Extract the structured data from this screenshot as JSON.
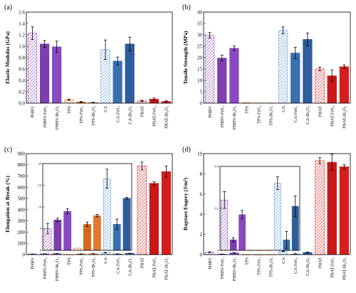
{
  "chart_data": [
    {
      "panel": "(a)",
      "type": "bar",
      "ylabel": "Elastic Modulus (GPa)",
      "ylim": [
        0.0,
        1.6
      ],
      "yticks": [
        "0.0",
        "0.2",
        "0.4",
        "0.6",
        "0.8",
        "1.0",
        "1.2",
        "1.4",
        "1.6"
      ],
      "categories": [
        "PHBV",
        "PHBV-FeS₃",
        "PHBV-Bi₂O₃",
        "TPS",
        "TPS-FeS₃",
        "TPS-Bi₂O₃",
        "CA",
        "CA-FeS₃",
        "CA-Bi₂O₃",
        "PBAT",
        "PBAT-FeS₃",
        "PBAT-Bi₂O₃"
      ],
      "values": [
        1.23,
        1.04,
        0.99,
        0.06,
        0.02,
        0.01,
        0.94,
        0.74,
        1.04,
        0.04,
        0.07,
        0.03
      ],
      "errors": [
        0.11,
        0.06,
        0.1,
        0.01,
        0.01,
        0.005,
        0.17,
        0.07,
        0.12,
        0.01,
        0.02,
        0.01
      ]
    },
    {
      "panel": "(b)",
      "type": "bar",
      "ylabel": "Tensile Strength (MPa)",
      "ylim": [
        0,
        40
      ],
      "yticks": [
        "0",
        "5",
        "10",
        "15",
        "20",
        "25",
        "30",
        "35",
        "40"
      ],
      "categories": [
        "PHBV",
        "PHBV-FeS₃",
        "PHBV-Bi₂O₃",
        "TPS",
        "TPS-FeS₃",
        "TPS-Bi₂O₃",
        "CA",
        "CA-FeS₃",
        "CA-Bi₂O₃",
        "PBAT",
        "PBAT-FeS₃",
        "PBAT-Bi₂O₃"
      ],
      "values": [
        29.8,
        19.8,
        24.1,
        0.2,
        0.1,
        0.1,
        32.0,
        22.0,
        28.0,
        15.0,
        12.0,
        16.0
      ],
      "errors": [
        1.2,
        1.3,
        1.0,
        0,
        0,
        0,
        1.5,
        2.5,
        2.8,
        0.8,
        2.5,
        0.8
      ]
    },
    {
      "panel": "(c)",
      "type": "bar",
      "ylabel": "Elongation at Break (%)",
      "ylim": [
        0,
        900
      ],
      "yticks": [
        "0",
        "100",
        "200",
        "300",
        "400",
        "500",
        "600",
        "700",
        "800",
        "900"
      ],
      "categories": [
        "PHBV",
        "PHBV-FeS₃",
        "PHBV-Bi₂O₃",
        "TPS",
        "TPS-FeS₃",
        "TPS-Bi₂O₃",
        "CA",
        "CA-FeS₃",
        "CA-Bi₂O₃",
        "PBAT",
        "PBAT-FeS₃",
        "PBAT-Bi₂O₃"
      ],
      "values": [
        5,
        7,
        9,
        0.5,
        6,
        8,
        16.5,
        6,
        12,
        790,
        635,
        740
      ],
      "errors": [
        1.2,
        0.4,
        0.6,
        0,
        0.5,
        0.3,
        2.2,
        1.2,
        0.2,
        35,
        15,
        50
      ],
      "inset": {
        "ylim": [
          0,
          20
        ],
        "yticks": [
          "0",
          "5",
          "10",
          "15",
          "20"
        ],
        "values": [
          5,
          7,
          9,
          0.5,
          6,
          8,
          16.5,
          6,
          12
        ],
        "errors": [
          1.2,
          0.4,
          0.6,
          0,
          0.5,
          0.3,
          2.2,
          1.2,
          0.2
        ]
      }
    },
    {
      "panel": "(d)",
      "type": "bar",
      "ylabel": "Rupture Engery (J/m²)",
      "ylim": [
        0,
        10
      ],
      "yticks": [
        "0",
        "2",
        "4",
        "6",
        "8",
        "10"
      ],
      "categories": [
        "PHBV",
        "PHBV-FeS₃",
        "PHBV-Bi₂O₃",
        "TPS",
        "TPS-FeS₃",
        "TPS-Bi₂O₃",
        "CA",
        "CA-FeS₃",
        "CA-Bi₂O₃",
        "PBAT",
        "PBAT-FeS₃",
        "PBAT-Bi₂O₃"
      ],
      "values": [
        0.24,
        0.05,
        0.17,
        0.0,
        0.0,
        0.0,
        0.32,
        0.05,
        0.21,
        9.3,
        9.15,
        8.7
      ],
      "errors": [
        0.04,
        0.01,
        0.02,
        0,
        0,
        0,
        0.03,
        0.04,
        0.05,
        0.3,
        0.8,
        0.2
      ],
      "inset": {
        "ylim": [
          0,
          0.4
        ],
        "yticks": [
          "0",
          "0.2",
          "0.4"
        ],
        "values": [
          0.24,
          0.05,
          0.17,
          0.0,
          0.0,
          0.0,
          0.32,
          0.05,
          0.21
        ],
        "errors": [
          0.04,
          0.01,
          0.02,
          0,
          0,
          0,
          0.03,
          0.04,
          0.05
        ]
      }
    }
  ],
  "colors": {
    "bars": [
      "#9b59c6",
      "#7e3fae",
      "#8a49c0",
      "#e07a2e",
      "#d4691e",
      "#e07a2e",
      "#6fa3d8",
      "#3a6fb0",
      "#2f5c9a",
      "#e33030",
      "#c81818",
      "#d61d1d"
    ],
    "patterns": [
      "hatch",
      "solid",
      "solid",
      "hatch",
      "solid",
      "solid",
      "hatch",
      "solid",
      "solid",
      "hatch",
      "solid",
      "solid"
    ]
  }
}
